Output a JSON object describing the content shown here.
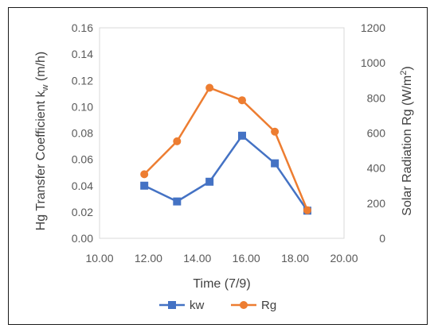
{
  "chart_data": {
    "type": "line",
    "title": "",
    "xlabel": "Time (7/9)",
    "ylabel": "Hg Transfer Coefficient k",
    "ylabel_sub": "w",
    "ylabel_unit": " (m/h)",
    "y2label": "Solar Radiation Rg (W/m",
    "y2label_sup": "2",
    "y2label_end": ")",
    "xlim": [
      10,
      20
    ],
    "ylim": [
      0,
      0.16
    ],
    "y2lim": [
      0,
      1200
    ],
    "xticks": [
      "10.00",
      "12.00",
      "14.00",
      "16.00",
      "18.00",
      "20.00"
    ],
    "yticks": [
      "0.00",
      "0.02",
      "0.04",
      "0.06",
      "0.08",
      "0.10",
      "0.12",
      "0.14",
      "0.16"
    ],
    "y2ticks": [
      "0",
      "200",
      "400",
      "600",
      "800",
      "1000",
      "1200"
    ],
    "grid": false,
    "legend_position": "bottom",
    "series": [
      {
        "name": "kw",
        "axis": "left",
        "marker": "square",
        "color": "#4472C4",
        "x": [
          11.83,
          13.17,
          14.5,
          15.83,
          17.17,
          18.5
        ],
        "y": [
          0.04,
          0.028,
          0.043,
          0.078,
          0.057,
          0.021
        ]
      },
      {
        "name": "Rg",
        "axis": "right",
        "marker": "circle",
        "color": "#ED7D31",
        "x": [
          11.83,
          13.17,
          14.5,
          15.83,
          17.17,
          18.5
        ],
        "y": [
          365,
          553,
          858,
          787,
          608,
          160
        ]
      }
    ]
  }
}
